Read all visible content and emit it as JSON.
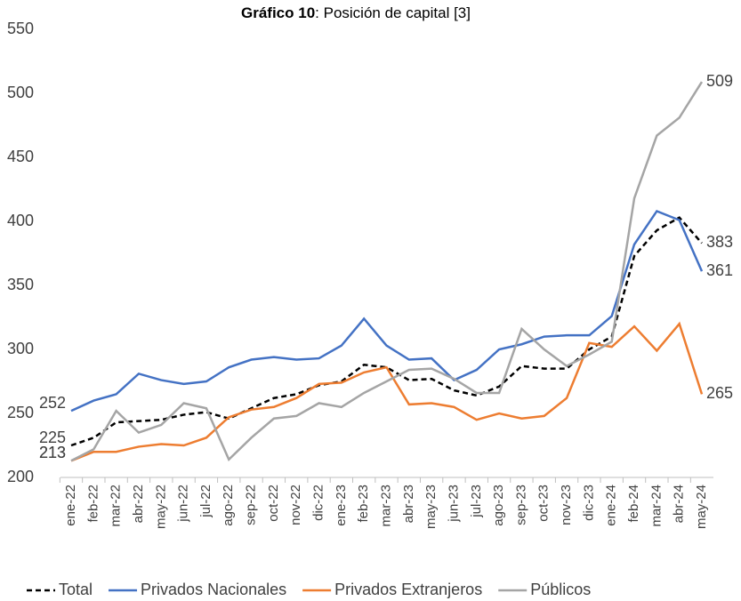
{
  "chart_data": {
    "type": "line",
    "title": {
      "lead": "Gráfico 10",
      "rest": ": Posición de capital [3]"
    },
    "categories": [
      "ene-22",
      "feb-22",
      "mar-22",
      "abr-22",
      "may-22",
      "jun-22",
      "jul-22",
      "ago-22",
      "sep-22",
      "oct-22",
      "nov-22",
      "dic-22",
      "ene-23",
      "feb-23",
      "mar-23",
      "abr-23",
      "may-23",
      "jun-23",
      "jul-23",
      "ago-23",
      "sep-23",
      "oct-23",
      "nov-23",
      "dic-23",
      "ene-24",
      "feb-24",
      "mar-24",
      "abr-24",
      "may-24"
    ],
    "series": [
      {
        "name": "Total",
        "color": "#000000",
        "dashed": true,
        "values": [
          225,
          231,
          243,
          244,
          245,
          249,
          251,
          246,
          254,
          262,
          265,
          272,
          275,
          288,
          286,
          276,
          277,
          268,
          264,
          271,
          287,
          285,
          285,
          300,
          310,
          373,
          393,
          403,
          383
        ]
      },
      {
        "name": "Privados Nacionales",
        "color": "#4472c4",
        "dashed": false,
        "values": [
          252,
          260,
          265,
          281,
          276,
          273,
          275,
          286,
          292,
          294,
          292,
          293,
          303,
          324,
          303,
          292,
          293,
          276,
          284,
          300,
          304,
          310,
          311,
          311,
          326,
          382,
          408,
          401,
          361
        ]
      },
      {
        "name": "Privados Extranjeros",
        "color": "#ed7d31",
        "dashed": false,
        "values": [
          213,
          220,
          220,
          224,
          226,
          225,
          231,
          247,
          253,
          255,
          262,
          273,
          274,
          282,
          286,
          257,
          258,
          255,
          245,
          250,
          246,
          248,
          262,
          305,
          302,
          318,
          299,
          320,
          265
        ]
      },
      {
        "name": "Públicos",
        "color": "#a5a5a5",
        "dashed": false,
        "values": [
          213,
          222,
          252,
          235,
          241,
          258,
          254,
          214,
          231,
          246,
          248,
          258,
          255,
          266,
          275,
          284,
          285,
          277,
          266,
          266,
          316,
          300,
          287,
          296,
          306,
          418,
          467,
          481,
          509
        ]
      }
    ],
    "ylim": [
      200,
      550
    ],
    "yticks": [
      200,
      250,
      300,
      350,
      400,
      450,
      500,
      550
    ],
    "grid": false,
    "legend": "bottom"
  }
}
